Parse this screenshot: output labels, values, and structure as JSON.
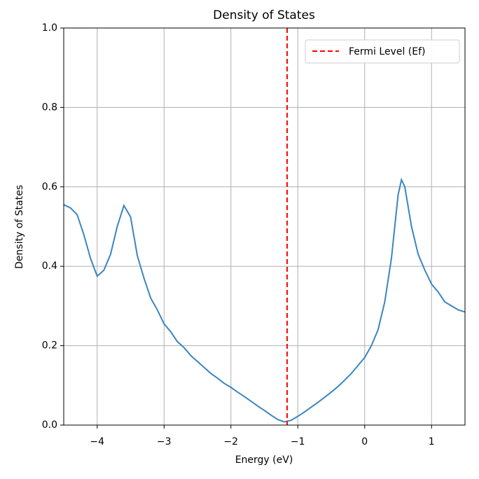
{
  "chart_data": {
    "type": "line",
    "title": "Density of States",
    "x_label": "Energy (eV)",
    "y_label": "Density of States",
    "x": [
      -4.5,
      -4.4,
      -4.3,
      -4.2,
      -4.1,
      -4.0,
      -3.9,
      -3.8,
      -3.7,
      -3.6,
      -3.5,
      -3.4,
      -3.3,
      -3.2,
      -3.1,
      -3.0,
      -2.9,
      -2.8,
      -2.7,
      -2.6,
      -2.5,
      -2.4,
      -2.3,
      -2.2,
      -2.1,
      -2.0,
      -1.9,
      -1.8,
      -1.7,
      -1.6,
      -1.5,
      -1.4,
      -1.3,
      -1.2,
      -1.1,
      -1.0,
      -0.9,
      -0.8,
      -0.7,
      -0.6,
      -0.5,
      -0.4,
      -0.3,
      -0.2,
      -0.1,
      0.0,
      0.1,
      0.2,
      0.3,
      0.4,
      0.5,
      0.55,
      0.6,
      0.7,
      0.8,
      0.9,
      1.0,
      1.1,
      1.2,
      1.3,
      1.4,
      1.5
    ],
    "series": [
      {
        "name": "Density of States",
        "color": "#3a86c0",
        "values": [
          0.555,
          0.547,
          0.53,
          0.48,
          0.42,
          0.375,
          0.39,
          0.43,
          0.5,
          0.553,
          0.524,
          0.427,
          0.37,
          0.32,
          0.29,
          0.255,
          0.235,
          0.21,
          0.195,
          0.175,
          0.16,
          0.145,
          0.13,
          0.118,
          0.105,
          0.095,
          0.083,
          0.072,
          0.06,
          0.048,
          0.037,
          0.025,
          0.014,
          0.008,
          0.012,
          0.022,
          0.033,
          0.045,
          0.057,
          0.07,
          0.083,
          0.097,
          0.113,
          0.13,
          0.15,
          0.17,
          0.2,
          0.24,
          0.31,
          0.42,
          0.58,
          0.618,
          0.6,
          0.5,
          0.43,
          0.39,
          0.355,
          0.335,
          0.31,
          0.3,
          0.29,
          0.285
        ]
      }
    ],
    "vline": {
      "name": "Fermi Level (Ef)",
      "x": -1.16,
      "color": "#ff0000"
    },
    "xlim": [
      -4.5,
      1.5
    ],
    "ylim": [
      0,
      1
    ],
    "xticks": [
      {
        "value": -4,
        "label": "−4"
      },
      {
        "value": -3,
        "label": "−3"
      },
      {
        "value": -2,
        "label": "−2"
      },
      {
        "value": -1,
        "label": "−1"
      },
      0,
      1
    ],
    "yticks": [
      {
        "value": 0,
        "label": "0.0"
      },
      0.2,
      0.4,
      0.6,
      0.8,
      {
        "value": 1,
        "label": "1.0"
      }
    ],
    "grid": true,
    "legend": "upper right"
  }
}
